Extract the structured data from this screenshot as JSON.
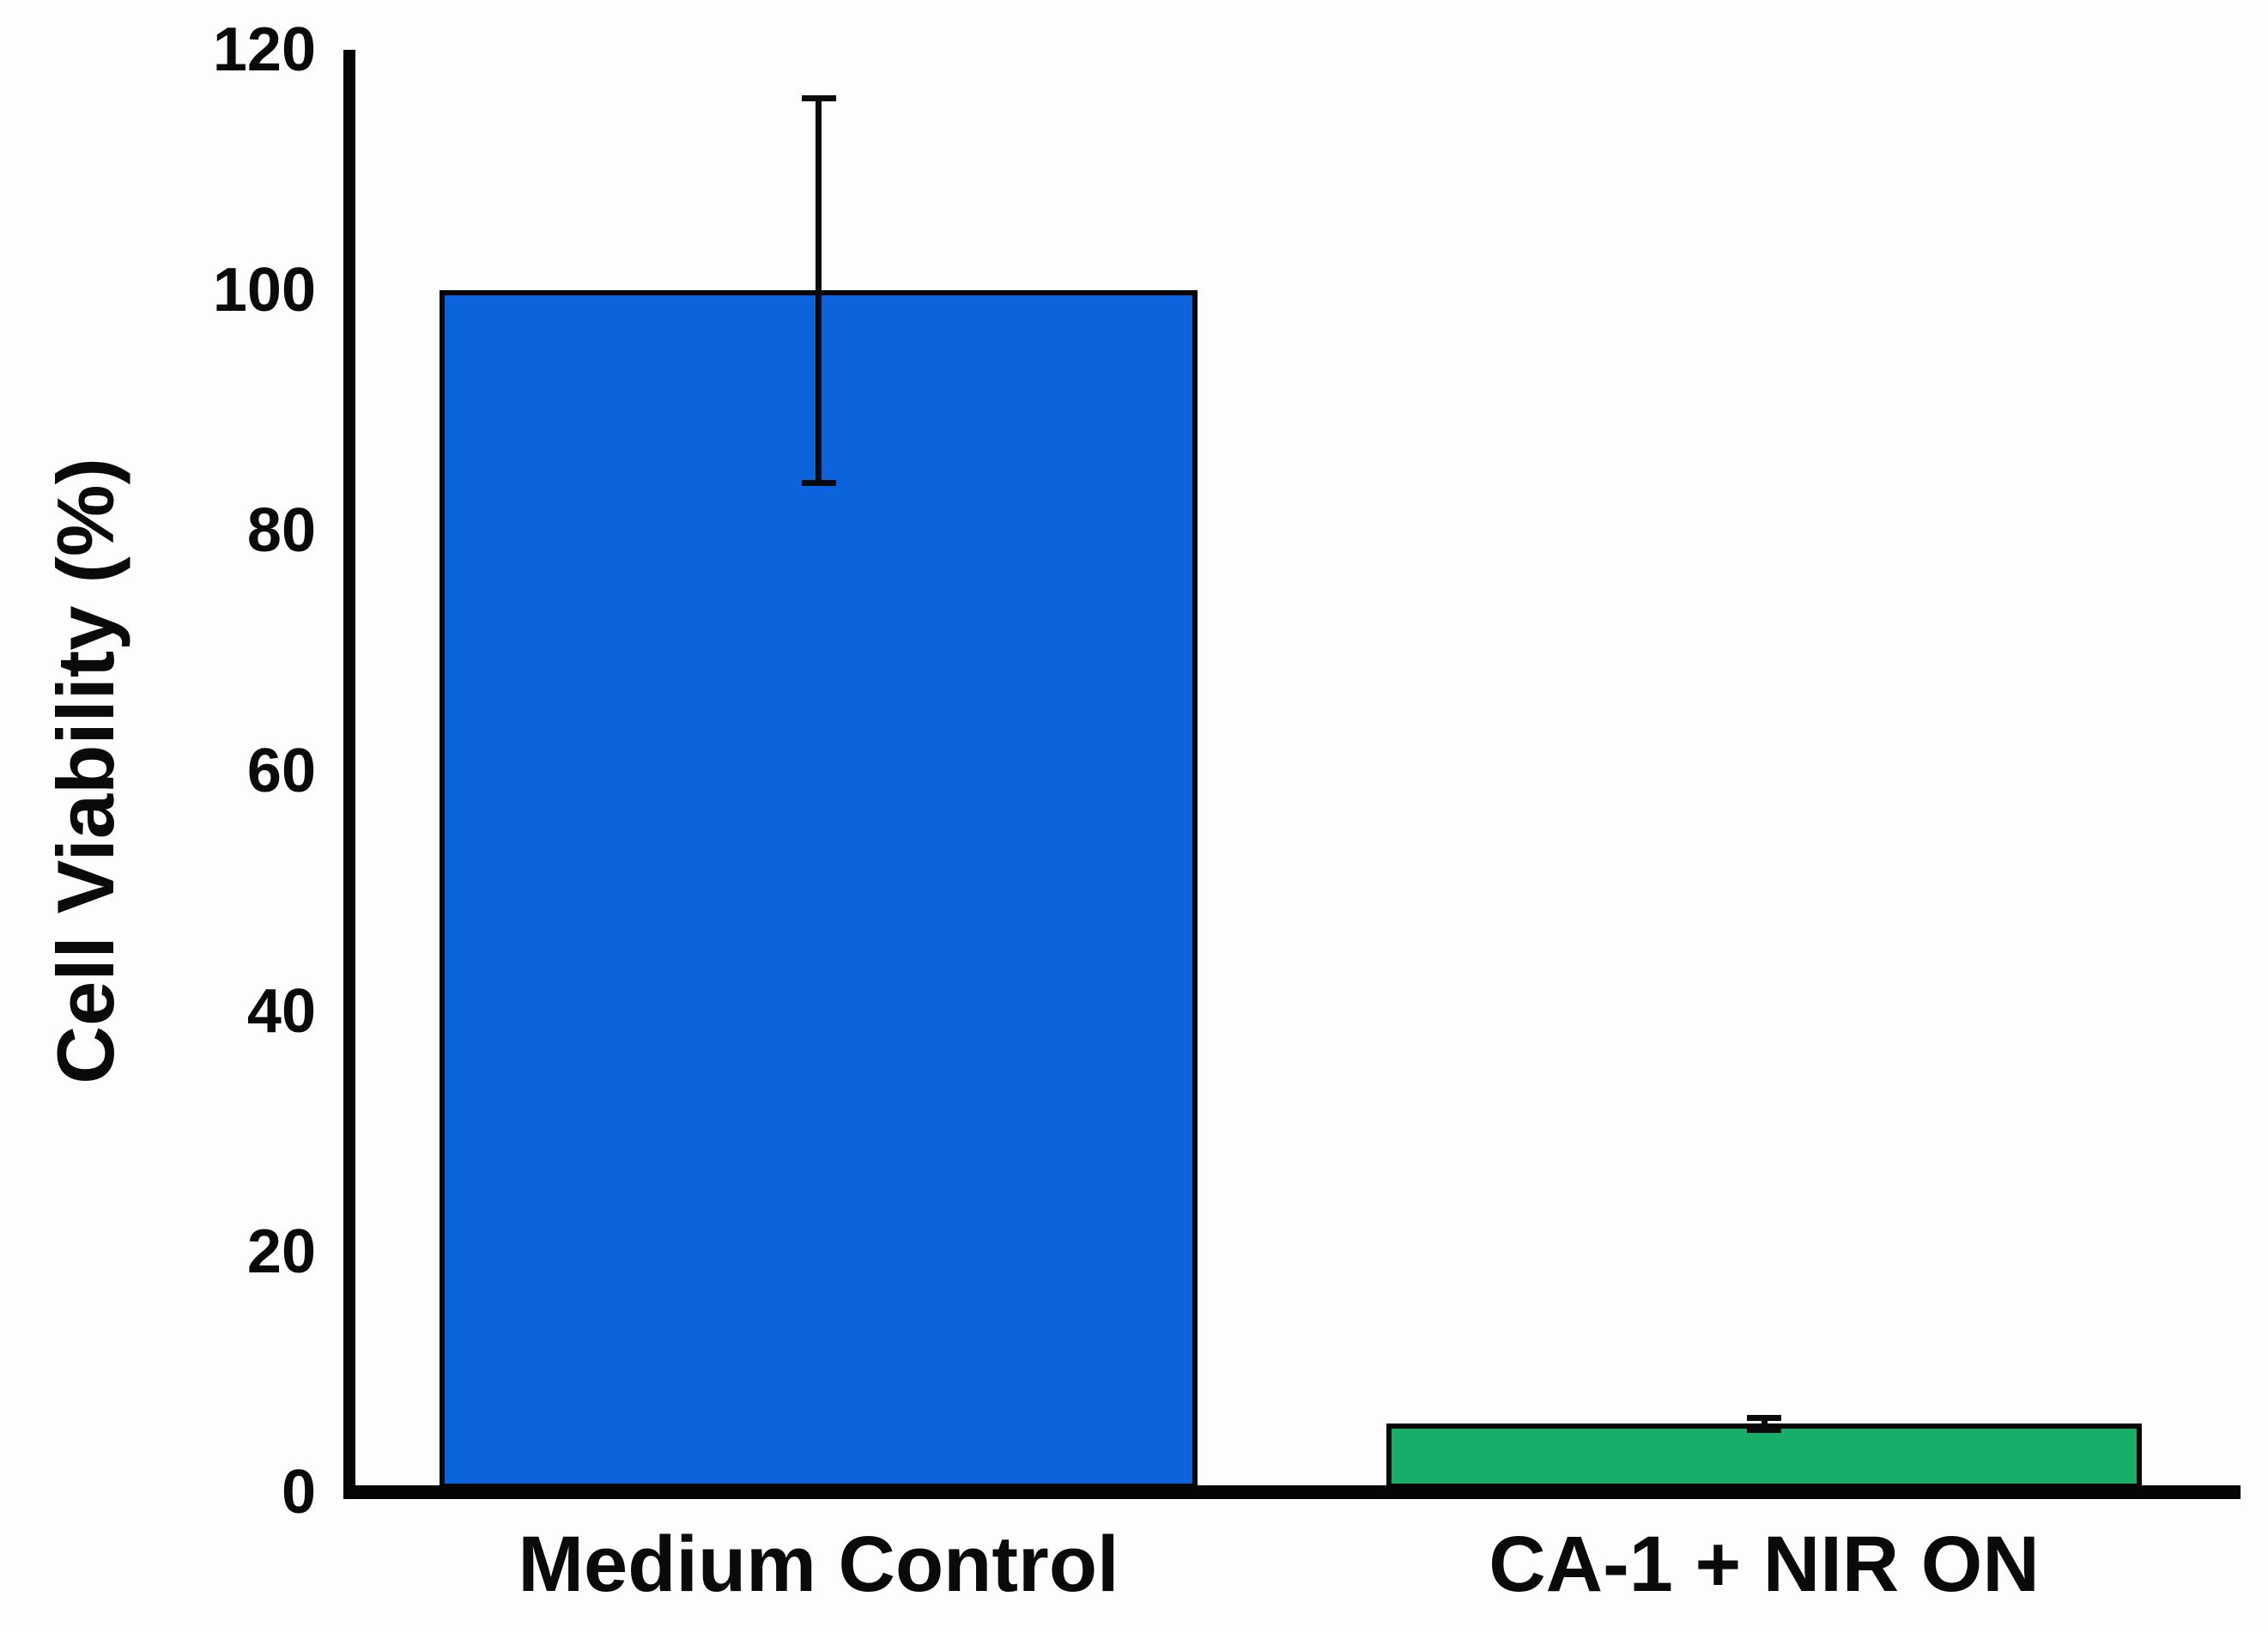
{
  "figure": {
    "background_color": "#fdfdfd",
    "axis_color": "#050505",
    "text_color": "#0a0a0a"
  },
  "chart_data": {
    "type": "bar",
    "title": "",
    "categories": [
      "Medium Control",
      "CA-1 + NIR ON"
    ],
    "values": [
      100,
      5.7
    ],
    "errors": [
      16,
      0.5
    ],
    "bar_colors": [
      "#0b64dc",
      "#17ae69"
    ],
    "bar_border_color": "#060606",
    "error_bar_color": "#0a0a0a",
    "xlabel": "",
    "ylabel": "Cell Viability (%)",
    "yticks": [
      0,
      20,
      40,
      60,
      80,
      100,
      120
    ],
    "ylim": [
      0,
      120
    ],
    "grid": false,
    "legend": null
  }
}
